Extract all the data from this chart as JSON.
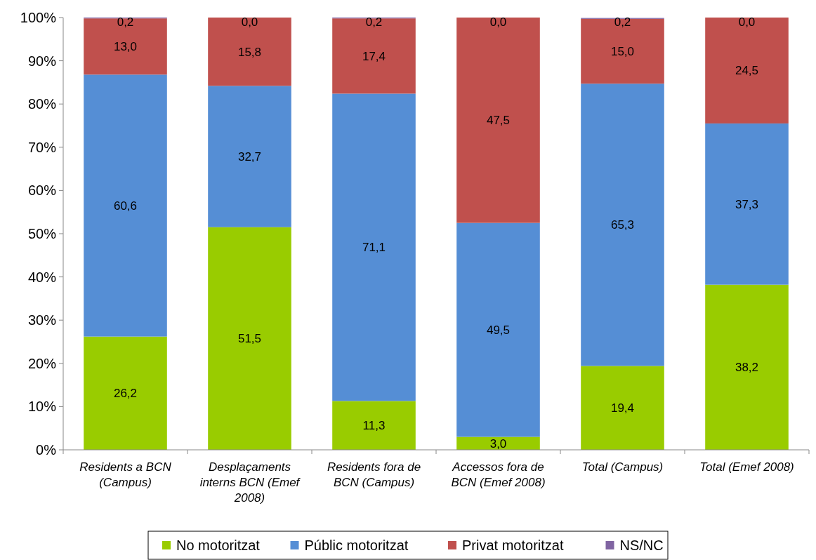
{
  "chart_data": {
    "type": "bar",
    "stacked": true,
    "categories": [
      "Residents a BCN (Campus)",
      "Desplaçaments interns BCN (Emef 2008)",
      "Residents fora de BCN (Campus)",
      "Accessos fora de BCN (Emef 2008)",
      "Total (Campus)",
      "Total (Emef 2008)"
    ],
    "series": [
      {
        "name": "No motoritzat",
        "color": "#99cc00",
        "values": [
          26.2,
          51.5,
          11.3,
          3.0,
          19.4,
          38.2
        ],
        "value_labels": [
          "26,2",
          "51,5",
          "11,3",
          "3,0",
          "19,4",
          "38,2"
        ]
      },
      {
        "name": "Públic motoritzat",
        "color": "#558ed5",
        "values": [
          60.6,
          32.7,
          71.1,
          49.5,
          65.3,
          37.3
        ],
        "value_labels": [
          "60,6",
          "32,7",
          "71,1",
          "49,5",
          "65,3",
          "37,3"
        ]
      },
      {
        "name": "Privat motoritzat",
        "color": "#c0504d",
        "values": [
          13.0,
          15.8,
          17.4,
          47.5,
          15.0,
          24.5
        ],
        "value_labels": [
          "13,0",
          "15,8",
          "17,4",
          "47,5",
          "15,0",
          "24,5"
        ]
      },
      {
        "name": "NS/NC",
        "color": "#8064a2",
        "values": [
          0.2,
          0.0,
          0.2,
          0.0,
          0.2,
          0.0
        ],
        "value_labels": [
          "0,2",
          "0,0",
          "0,2",
          "0,0",
          "0,2",
          "0,0"
        ]
      }
    ],
    "ylim": [
      0,
      100
    ],
    "yticks": [
      {
        "value": 0,
        "label": "0%"
      },
      {
        "value": 10,
        "label": "10%"
      },
      {
        "value": 20,
        "label": "20%"
      },
      {
        "value": 30,
        "label": "30%"
      },
      {
        "value": 40,
        "label": "40%"
      },
      {
        "value": 50,
        "label": "50%"
      },
      {
        "value": 60,
        "label": "60%"
      },
      {
        "value": 70,
        "label": "70%"
      },
      {
        "value": 80,
        "label": "80%"
      },
      {
        "value": 90,
        "label": "90%"
      },
      {
        "value": 100,
        "label": "100%"
      }
    ],
    "grid": false,
    "legend": "bottom"
  }
}
